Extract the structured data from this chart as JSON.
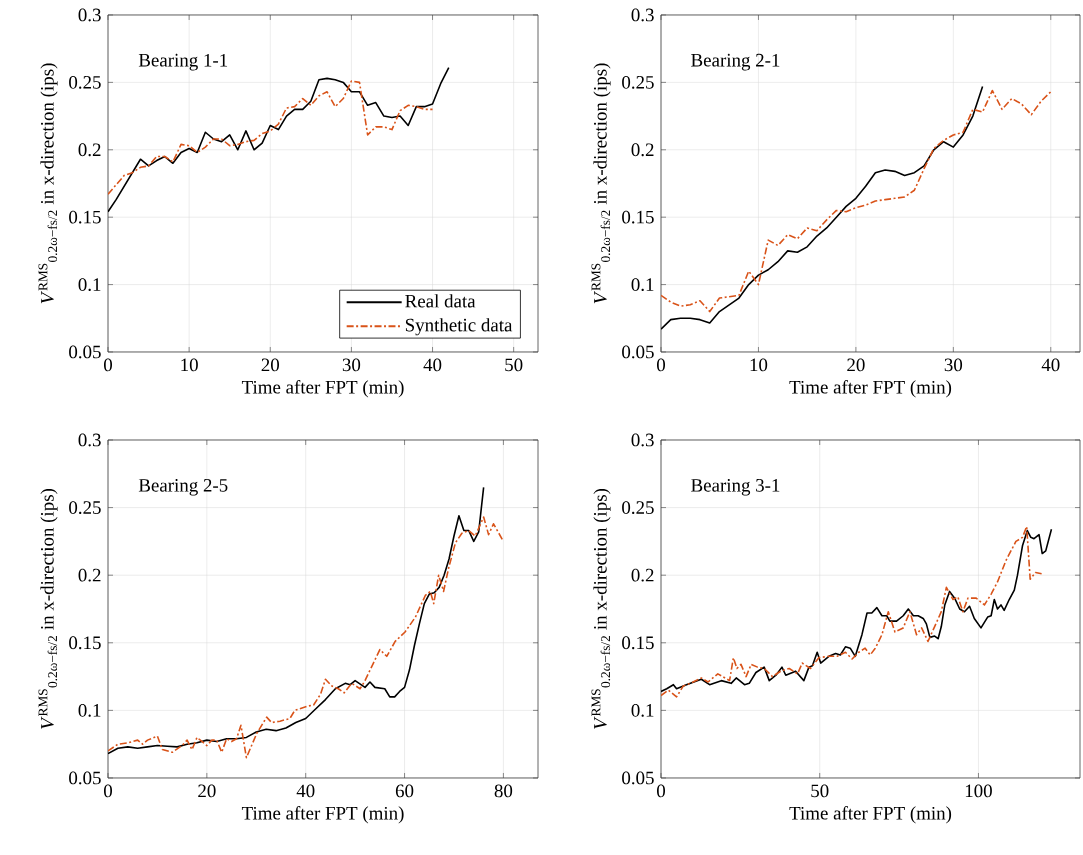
{
  "chart_data": [
    {
      "type": "line",
      "annotations": [
        "Bearing 1-1"
      ],
      "xlabel": "Time after FPT (min)",
      "ylabel": "*V*$^{RMS}$$_{0.2ω−fs/2}$ in x-direction (ips)",
      "xlim": [
        0,
        53
      ],
      "ylim": [
        0.05,
        0.3
      ],
      "xticks": [
        0,
        10,
        20,
        30,
        40,
        50
      ],
      "yticks": [
        0.05,
        0.1,
        0.15,
        0.2,
        0.25,
        0.3
      ],
      "grid": true,
      "legend": "bottom right",
      "series": [
        {
          "name": "Real data",
          "color": "#000000",
          "line_style": "solid",
          "x": [
            0,
            1,
            2,
            3,
            4,
            5,
            6,
            7,
            8,
            9,
            10,
            11,
            12,
            13,
            14,
            15,
            16,
            17,
            18,
            19,
            20,
            21,
            22,
            23,
            24,
            25,
            26,
            27,
            28,
            29,
            30,
            31,
            32,
            33,
            34,
            35,
            36,
            37,
            38,
            39,
            40,
            41,
            42
          ],
          "values": [
            0.154,
            0.163,
            0.173,
            0.183,
            0.193,
            0.188,
            0.192,
            0.195,
            0.19,
            0.198,
            0.201,
            0.198,
            0.213,
            0.208,
            0.206,
            0.211,
            0.2,
            0.214,
            0.2,
            0.205,
            0.218,
            0.215,
            0.225,
            0.23,
            0.23,
            0.236,
            0.252,
            0.253,
            0.252,
            0.25,
            0.243,
            0.243,
            0.233,
            0.235,
            0.225,
            0.224,
            0.225,
            0.218,
            0.232,
            0.232,
            0.234,
            0.249,
            0.261
          ]
        },
        {
          "name": "Synthetic data",
          "color": "#d95319",
          "line_style": "dashed",
          "x": [
            0,
            1,
            2,
            3,
            4,
            5,
            6,
            7,
            8,
            9,
            10,
            11,
            12,
            13,
            14,
            15,
            16,
            17,
            18,
            19,
            20,
            21,
            22,
            23,
            24,
            25,
            26,
            27,
            28,
            29,
            30,
            31,
            32,
            33,
            34,
            35,
            36,
            37,
            38,
            39,
            40
          ],
          "values": [
            0.167,
            0.174,
            0.181,
            0.183,
            0.187,
            0.188,
            0.195,
            0.195,
            0.191,
            0.204,
            0.203,
            0.198,
            0.202,
            0.208,
            0.208,
            0.203,
            0.204,
            0.206,
            0.207,
            0.212,
            0.214,
            0.219,
            0.231,
            0.232,
            0.238,
            0.233,
            0.24,
            0.243,
            0.232,
            0.238,
            0.251,
            0.25,
            0.211,
            0.217,
            0.217,
            0.215,
            0.229,
            0.233,
            0.232,
            0.23,
            0.23
          ]
        }
      ]
    },
    {
      "type": "line",
      "annotations": [
        "Bearing 2-1"
      ],
      "xlabel": "Time after FPT (min)",
      "ylabel": "*V*$^{RMS}$$_{0.2ω−fs/2}$ in x-direction (ips)",
      "xlim": [
        0,
        43
      ],
      "ylim": [
        0.05,
        0.3
      ],
      "xticks": [
        0,
        10,
        20,
        30,
        40
      ],
      "yticks": [
        0.05,
        0.1,
        0.15,
        0.2,
        0.25,
        0.3
      ],
      "grid": true,
      "series": [
        {
          "color": "#000000",
          "line_style": "solid",
          "x": [
            0,
            1,
            2,
            3,
            4,
            5,
            6,
            7,
            8,
            9,
            10,
            11,
            12,
            13,
            14,
            15,
            16,
            17,
            18,
            19,
            20,
            21,
            22,
            23,
            24,
            25,
            26,
            27,
            28,
            29,
            30,
            31,
            32,
            33
          ],
          "values": [
            0.067,
            0.074,
            0.075,
            0.075,
            0.074,
            0.0715,
            0.08,
            0.085,
            0.09,
            0.1,
            0.107,
            0.111,
            0.117,
            0.125,
            0.124,
            0.128,
            0.136,
            0.142,
            0.15,
            0.158,
            0.164,
            0.173,
            0.183,
            0.185,
            0.184,
            0.181,
            0.183,
            0.188,
            0.2,
            0.206,
            0.202,
            0.211,
            0.225,
            0.247
          ]
        },
        {
          "color": "#d95319",
          "line_style": "dashed",
          "x": [
            0,
            1,
            2,
            3,
            4,
            5,
            6,
            7,
            8,
            9,
            10,
            11,
            12,
            13,
            14,
            15,
            16,
            17,
            18,
            19,
            20,
            21,
            22,
            23,
            24,
            25,
            26,
            27,
            28,
            29,
            30,
            31,
            32,
            33,
            34,
            35,
            36,
            37,
            38,
            39,
            40
          ],
          "values": [
            0.092,
            0.087,
            0.084,
            0.085,
            0.088,
            0.08,
            0.09,
            0.091,
            0.092,
            0.11,
            0.1,
            0.133,
            0.129,
            0.137,
            0.134,
            0.142,
            0.14,
            0.148,
            0.155,
            0.154,
            0.157,
            0.159,
            0.162,
            0.163,
            0.164,
            0.165,
            0.17,
            0.186,
            0.201,
            0.207,
            0.211,
            0.213,
            0.23,
            0.228,
            0.244,
            0.23,
            0.238,
            0.234,
            0.226,
            0.236,
            0.243
          ]
        }
      ]
    },
    {
      "type": "line",
      "annotations": [
        "Bearing 2-5"
      ],
      "xlabel": "Time after FPT (min)",
      "ylabel": "*V*$^{RMS}$$_{0.2ω−fs/2}$ in x-direction (ips)",
      "xlim": [
        0,
        87
      ],
      "ylim": [
        0.05,
        0.3
      ],
      "xticks": [
        0,
        20,
        40,
        60,
        80
      ],
      "yticks": [
        0.05,
        0.1,
        0.15,
        0.2,
        0.25,
        0.3
      ],
      "grid": true,
      "series": [
        {
          "color": "#000000",
          "line_style": "solid",
          "x": [
            0,
            2,
            4,
            6,
            8,
            10,
            12,
            14,
            16,
            18,
            20,
            22,
            24,
            26,
            28,
            30,
            32,
            34,
            36,
            38,
            40,
            42,
            44,
            46,
            48,
            49,
            50,
            52,
            53,
            54,
            56,
            57,
            58,
            59,
            60,
            61,
            62,
            63,
            64,
            65,
            66,
            67,
            68,
            69,
            70,
            71,
            72,
            73,
            74,
            75,
            76
          ],
          "values": [
            0.068,
            0.072,
            0.073,
            0.072,
            0.073,
            0.074,
            0.0735,
            0.073,
            0.075,
            0.076,
            0.078,
            0.077,
            0.079,
            0.079,
            0.08,
            0.084,
            0.086,
            0.085,
            0.087,
            0.091,
            0.094,
            0.101,
            0.108,
            0.116,
            0.12,
            0.119,
            0.122,
            0.117,
            0.121,
            0.117,
            0.116,
            0.11,
            0.11,
            0.114,
            0.117,
            0.13,
            0.148,
            0.164,
            0.179,
            0.186,
            0.187,
            0.191,
            0.2,
            0.212,
            0.229,
            0.244,
            0.233,
            0.233,
            0.225,
            0.232,
            0.265
          ]
        },
        {
          "color": "#d95319",
          "line_style": "dashed",
          "x": [
            0,
            2,
            4,
            6,
            7,
            8,
            10,
            11,
            13,
            15,
            16,
            17,
            18,
            19,
            20,
            21,
            22,
            23,
            24,
            25,
            26,
            26.9,
            28,
            30.1,
            32.1,
            33.1,
            34.8,
            36.8,
            37.8,
            40.2,
            41.6,
            43,
            44,
            45.3,
            46.6,
            47.8,
            49.3,
            51,
            52,
            53.7,
            55,
            56.4,
            58.1,
            60.1,
            62.2,
            64.2,
            65.2,
            65.9,
            66.9,
            67.9,
            68.9,
            70.3,
            71.6,
            73,
            74.3,
            76,
            77,
            78,
            80
          ],
          "values": [
            0.07,
            0.075,
            0.076,
            0.078,
            0.075,
            0.078,
            0.081,
            0.071,
            0.069,
            0.074,
            0.078,
            0.071,
            0.08,
            0.077,
            0.074,
            0.078,
            0.078,
            0.069,
            0.079,
            0.077,
            0.079,
            0.089,
            0.065,
            0.083,
            0.095,
            0.091,
            0.092,
            0.094,
            0.1,
            0.103,
            0.104,
            0.112,
            0.123,
            0.118,
            0.116,
            0.113,
            0.12,
            0.116,
            0.122,
            0.135,
            0.145,
            0.14,
            0.151,
            0.158,
            0.169,
            0.185,
            0.188,
            0.179,
            0.2,
            0.188,
            0.205,
            0.224,
            0.231,
            0.233,
            0.229,
            0.243,
            0.23,
            0.238,
            0.225
          ]
        }
      ]
    },
    {
      "type": "line",
      "annotations": [
        "Bearing 3-1"
      ],
      "xlabel": "Time after FPT (min)",
      "ylabel": "*V*$^{RMS}$$_{0.2ω−fs/2}$ in x-direction (ips)",
      "xlim": [
        0,
        132
      ],
      "ylim": [
        0.05,
        0.3
      ],
      "xticks": [
        0,
        50,
        100
      ],
      "yticks": [
        0.05,
        0.1,
        0.15,
        0.2,
        0.25,
        0.3
      ],
      "grid": true,
      "series": [
        {
          "color": "#000000",
          "line_style": "solid",
          "x": [
            0,
            1.8,
            3.9,
            4.9,
            8,
            12.7,
            15.3,
            19,
            22.1,
            23.7,
            26.3,
            27.8,
            29.9,
            32.5,
            34.1,
            36.2,
            38.1,
            39.3,
            42.4,
            45,
            46.6,
            47.7,
            49.2,
            50.3,
            52.9,
            55,
            56.5,
            58.1,
            59.6,
            61.2,
            63.3,
            64.9,
            66.4,
            68,
            69.6,
            71.1,
            72.1,
            74.2,
            76.3,
            77.9,
            79.5,
            81,
            82.6,
            83.6,
            84.7,
            86.2,
            87.3,
            88.3,
            89.4,
            90.9,
            92.5,
            94.1,
            95.6,
            97.2,
            98.7,
            100.8,
            102.9,
            104,
            105,
            106,
            107.1,
            108.1,
            109.7,
            111.3,
            112.3,
            113.9,
            115.4,
            116.5,
            117.5,
            119.1,
            120.1,
            121.2,
            123
          ],
          "values": [
            0.114,
            0.116,
            0.119,
            0.116,
            0.119,
            0.123,
            0.119,
            0.122,
            0.12,
            0.124,
            0.119,
            0.12,
            0.128,
            0.132,
            0.122,
            0.126,
            0.132,
            0.126,
            0.129,
            0.122,
            0.132,
            0.133,
            0.143,
            0.135,
            0.14,
            0.142,
            0.141,
            0.147,
            0.146,
            0.14,
            0.156,
            0.172,
            0.172,
            0.176,
            0.17,
            0.17,
            0.166,
            0.166,
            0.17,
            0.175,
            0.17,
            0.17,
            0.168,
            0.164,
            0.154,
            0.155,
            0.153,
            0.162,
            0.178,
            0.188,
            0.183,
            0.175,
            0.173,
            0.177,
            0.168,
            0.161,
            0.169,
            0.17,
            0.182,
            0.175,
            0.178,
            0.174,
            0.182,
            0.189,
            0.2,
            0.222,
            0.233,
            0.228,
            0.227,
            0.23,
            0.216,
            0.218,
            0.234
          ]
        },
        {
          "color": "#d95319",
          "line_style": "dashed",
          "x": [
            0,
            2.3,
            4.9,
            7,
            10.1,
            12.7,
            14.8,
            17.9,
            21.6,
            22.8,
            23.9,
            25.2,
            26.8,
            28.4,
            30.4,
            32.5,
            35.1,
            37.7,
            40.4,
            43,
            44.5,
            47.1,
            49.7,
            52.9,
            55.5,
            58.1,
            60.2,
            62.3,
            64.3,
            65.9,
            67.5,
            69.6,
            71.6,
            73.7,
            76.3,
            78.4,
            80.5,
            82.1,
            84.1,
            86.2,
            88.3,
            89.9,
            92,
            93.5,
            95.1,
            96.7,
            99.3,
            101.9,
            104,
            106,
            108.7,
            111.8,
            113.9,
            115.2,
            116.3,
            118,
            119.9
          ],
          "values": [
            0.111,
            0.115,
            0.11,
            0.118,
            0.121,
            0.124,
            0.121,
            0.127,
            0.122,
            0.139,
            0.131,
            0.134,
            0.125,
            0.134,
            0.132,
            0.131,
            0.125,
            0.129,
            0.131,
            0.127,
            0.135,
            0.131,
            0.139,
            0.14,
            0.14,
            0.143,
            0.138,
            0.143,
            0.146,
            0.141,
            0.146,
            0.156,
            0.173,
            0.158,
            0.161,
            0.173,
            0.156,
            0.161,
            0.151,
            0.162,
            0.173,
            0.191,
            0.182,
            0.184,
            0.173,
            0.183,
            0.183,
            0.178,
            0.186,
            0.195,
            0.211,
            0.225,
            0.228,
            0.236,
            0.197,
            0.202,
            0.201
          ]
        }
      ]
    }
  ]
}
